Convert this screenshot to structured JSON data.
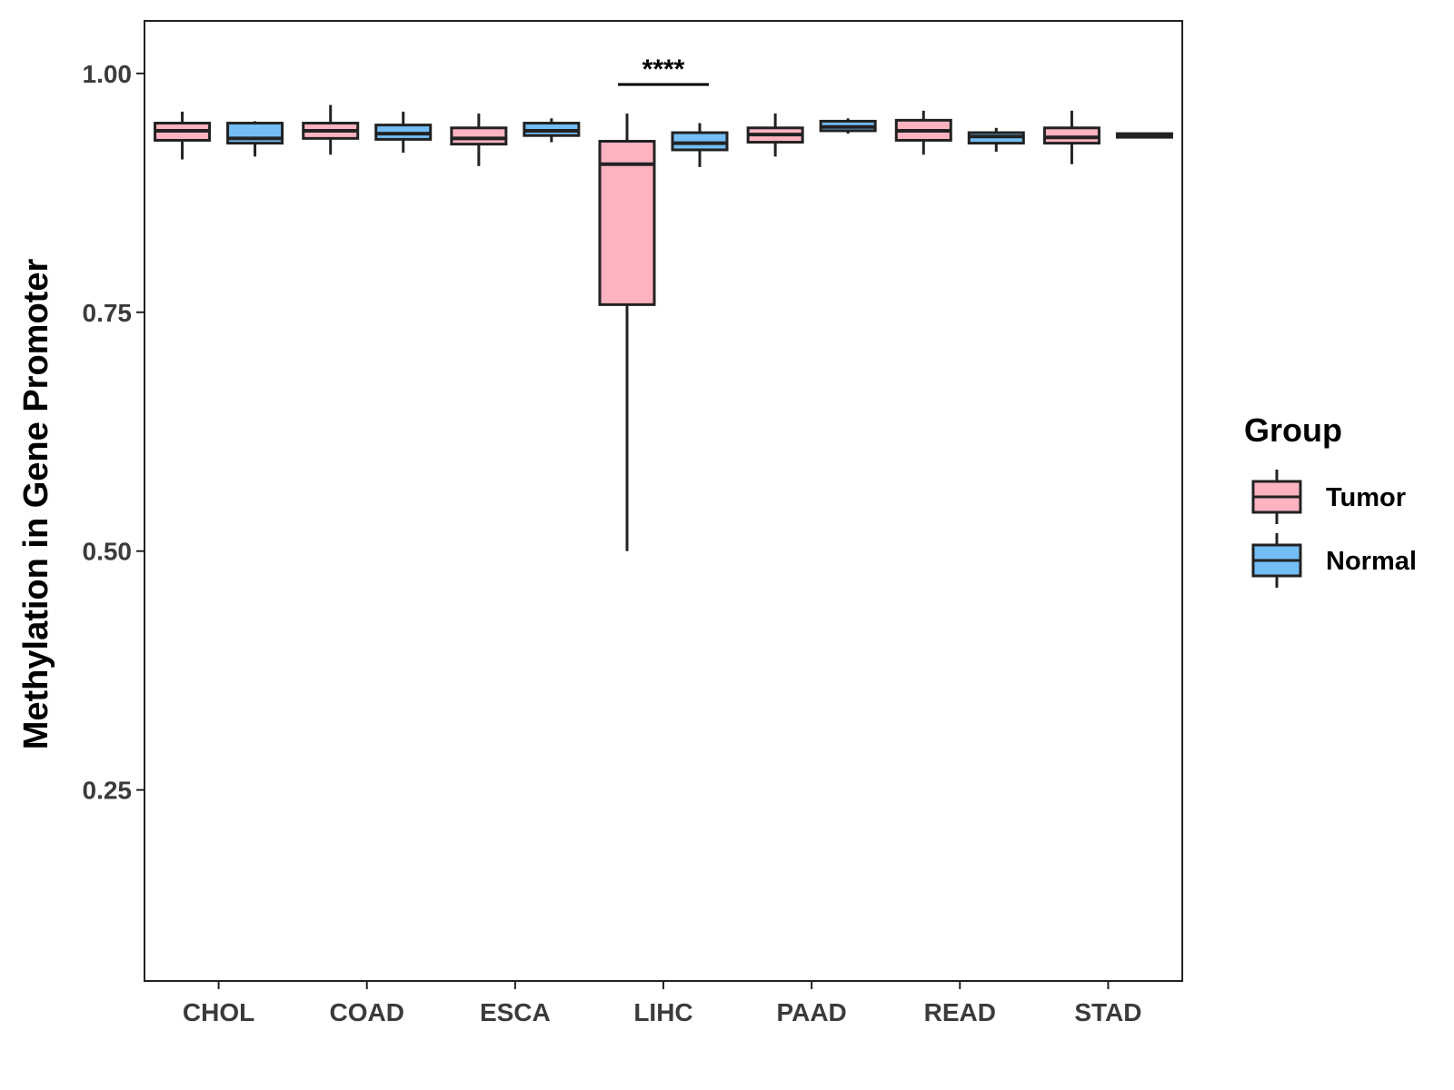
{
  "chart_data": {
    "type": "boxplot",
    "title": "",
    "xlabel": "",
    "ylabel": "Methylation in Gene Promoter",
    "ylim": [
      0.05,
      1.055
    ],
    "yticks": [
      0.25,
      0.5,
      0.75,
      1.0
    ],
    "ytick_labels": [
      "0.25",
      "0.50",
      "0.75",
      "1.00"
    ],
    "categories": [
      "CHOL",
      "COAD",
      "ESCA",
      "LIHC",
      "PAAD",
      "READ",
      "STAD"
    ],
    "legend": {
      "title": "Group",
      "position": "right",
      "entries": [
        {
          "name": "Tumor",
          "color": "#ffb3c1"
        },
        {
          "name": "Normal",
          "color": "#74bdf5"
        }
      ]
    },
    "series": [
      {
        "name": "Tumor",
        "color": "#ffb3c1",
        "boxes": [
          {
            "category": "CHOL",
            "whisker_low": 0.91,
            "q1": 0.93,
            "median": 0.94,
            "q3": 0.948,
            "whisker_high": 0.96
          },
          {
            "category": "COAD",
            "whisker_low": 0.915,
            "q1": 0.932,
            "median": 0.94,
            "q3": 0.948,
            "whisker_high": 0.967
          },
          {
            "category": "ESCA",
            "whisker_low": 0.903,
            "q1": 0.926,
            "median": 0.932,
            "q3": 0.943,
            "whisker_high": 0.958
          },
          {
            "category": "LIHC",
            "whisker_low": 0.5,
            "q1": 0.758,
            "median": 0.905,
            "q3": 0.929,
            "whisker_high": 0.958
          },
          {
            "category": "PAAD",
            "whisker_low": 0.913,
            "q1": 0.928,
            "median": 0.936,
            "q3": 0.943,
            "whisker_high": 0.958
          },
          {
            "category": "READ",
            "whisker_low": 0.915,
            "q1": 0.93,
            "median": 0.94,
            "q3": 0.951,
            "whisker_high": 0.961
          },
          {
            "category": "STAD",
            "whisker_low": 0.905,
            "q1": 0.927,
            "median": 0.933,
            "q3": 0.943,
            "whisker_high": 0.961
          }
        ]
      },
      {
        "name": "Normal",
        "color": "#74bdf5",
        "boxes": [
          {
            "category": "CHOL",
            "whisker_low": 0.913,
            "q1": 0.927,
            "median": 0.932,
            "q3": 0.948,
            "whisker_high": 0.95
          },
          {
            "category": "COAD",
            "whisker_low": 0.917,
            "q1": 0.931,
            "median": 0.937,
            "q3": 0.946,
            "whisker_high": 0.96
          },
          {
            "category": "ESCA",
            "whisker_low": 0.928,
            "q1": 0.935,
            "median": 0.94,
            "q3": 0.948,
            "whisker_high": 0.953
          },
          {
            "category": "LIHC",
            "whisker_low": 0.902,
            "q1": 0.92,
            "median": 0.927,
            "q3": 0.938,
            "whisker_high": 0.948
          },
          {
            "category": "PAAD",
            "whisker_low": 0.937,
            "q1": 0.94,
            "median": 0.944,
            "q3": 0.95,
            "whisker_high": 0.953
          },
          {
            "category": "READ",
            "whisker_low": 0.918,
            "q1": 0.927,
            "median": 0.934,
            "q3": 0.938,
            "whisker_high": 0.943
          },
          {
            "category": "STAD",
            "whisker_low": 0.935,
            "q1": 0.935,
            "median": 0.936,
            "q3": 0.937,
            "whisker_high": 0.937
          }
        ]
      }
    ],
    "annotations": [
      {
        "category": "LIHC",
        "text": "****",
        "type": "significance"
      }
    ]
  }
}
